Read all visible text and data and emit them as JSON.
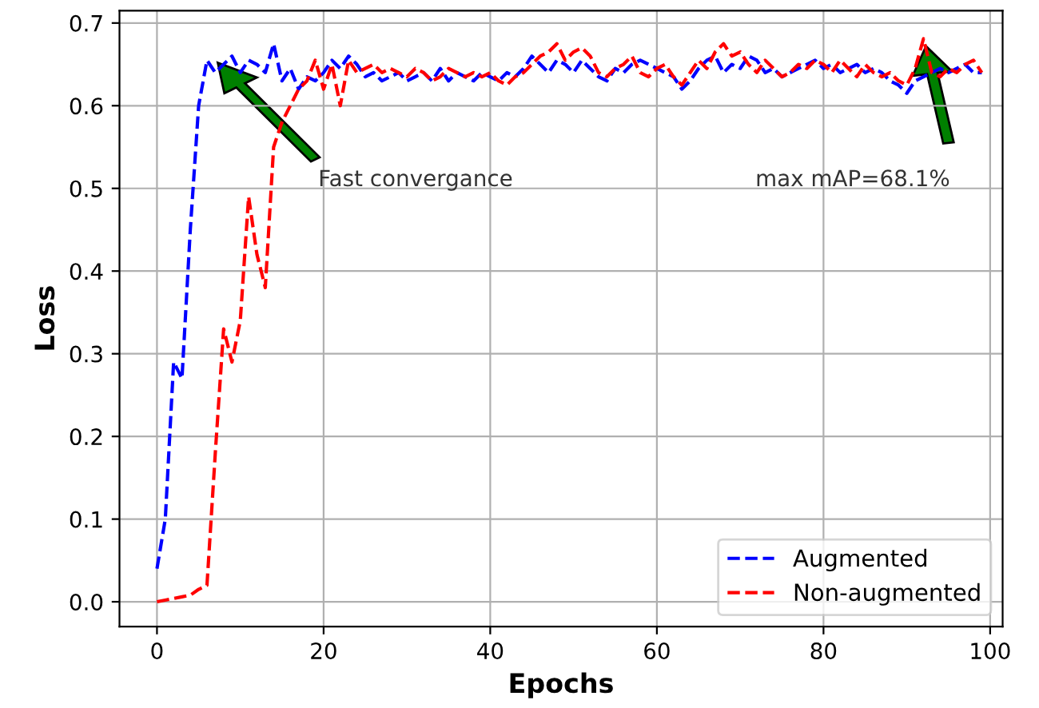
{
  "chart_data": {
    "type": "line",
    "xlabel": "Epochs",
    "ylabel": "Loss",
    "x": [
      0,
      1,
      2,
      3,
      4,
      5,
      6,
      7,
      8,
      9,
      10,
      11,
      12,
      13,
      14,
      15,
      16,
      17,
      18,
      19,
      20,
      21,
      22,
      23,
      24,
      25,
      26,
      27,
      28,
      29,
      30,
      31,
      32,
      33,
      34,
      35,
      36,
      37,
      38,
      39,
      40,
      41,
      42,
      43,
      44,
      45,
      46,
      47,
      48,
      49,
      50,
      51,
      52,
      53,
      54,
      55,
      56,
      57,
      58,
      59,
      60,
      61,
      62,
      63,
      64,
      65,
      66,
      67,
      68,
      69,
      70,
      71,
      72,
      73,
      74,
      75,
      76,
      77,
      78,
      79,
      80,
      81,
      82,
      83,
      84,
      85,
      86,
      87,
      88,
      89,
      90,
      91,
      92,
      93,
      94,
      95,
      96,
      97,
      98,
      99
    ],
    "series": [
      {
        "name": "Augmented",
        "color": "#0000ff",
        "values": [
          0.04,
          0.1,
          0.29,
          0.27,
          0.45,
          0.6,
          0.655,
          0.64,
          0.65,
          0.66,
          0.64,
          0.655,
          0.65,
          0.64,
          0.675,
          0.63,
          0.645,
          0.62,
          0.635,
          0.63,
          0.64,
          0.655,
          0.645,
          0.66,
          0.65,
          0.635,
          0.64,
          0.63,
          0.635,
          0.64,
          0.63,
          0.635,
          0.64,
          0.63,
          0.645,
          0.63,
          0.64,
          0.635,
          0.63,
          0.64,
          0.635,
          0.63,
          0.64,
          0.635,
          0.645,
          0.66,
          0.65,
          0.64,
          0.655,
          0.65,
          0.64,
          0.655,
          0.645,
          0.635,
          0.63,
          0.645,
          0.64,
          0.65,
          0.655,
          0.65,
          0.645,
          0.64,
          0.635,
          0.62,
          0.63,
          0.645,
          0.655,
          0.66,
          0.64,
          0.65,
          0.645,
          0.66,
          0.655,
          0.64,
          0.645,
          0.635,
          0.64,
          0.645,
          0.65,
          0.655,
          0.645,
          0.65,
          0.64,
          0.645,
          0.65,
          0.64,
          0.645,
          0.64,
          0.63,
          0.625,
          0.615,
          0.63,
          0.635,
          0.64,
          0.645,
          0.64,
          0.645,
          0.65,
          0.64,
          0.64
        ]
      },
      {
        "name": "Non-augmented",
        "color": "#ff0000",
        "values": [
          0,
          0.002,
          0.004,
          0.006,
          0.008,
          0.015,
          0.02,
          0.18,
          0.33,
          0.29,
          0.34,
          0.49,
          0.42,
          0.38,
          0.55,
          0.58,
          0.6,
          0.62,
          0.63,
          0.655,
          0.62,
          0.65,
          0.6,
          0.655,
          0.64,
          0.645,
          0.65,
          0.64,
          0.645,
          0.64,
          0.635,
          0.645,
          0.64,
          0.63,
          0.635,
          0.645,
          0.64,
          0.635,
          0.64,
          0.635,
          0.64,
          0.63,
          0.625,
          0.635,
          0.64,
          0.65,
          0.66,
          0.665,
          0.675,
          0.655,
          0.665,
          0.67,
          0.66,
          0.64,
          0.635,
          0.645,
          0.65,
          0.66,
          0.64,
          0.635,
          0.645,
          0.65,
          0.635,
          0.625,
          0.64,
          0.655,
          0.645,
          0.665,
          0.675,
          0.66,
          0.665,
          0.65,
          0.64,
          0.655,
          0.645,
          0.635,
          0.64,
          0.65,
          0.645,
          0.655,
          0.65,
          0.64,
          0.655,
          0.645,
          0.635,
          0.65,
          0.64,
          0.635,
          0.64,
          0.63,
          0.625,
          0.645,
          0.681,
          0.64,
          0.635,
          0.645,
          0.64,
          0.65,
          0.655,
          0.64
        ]
      }
    ],
    "line_style": "dashed",
    "marker": "none",
    "xlim": [
      -4.5,
      101.5
    ],
    "xticks": [
      0,
      20,
      40,
      60,
      80,
      100
    ],
    "ylim": [
      -0.03,
      0.715
    ],
    "yticks": [
      {
        "value": 0,
        "label": "0.0"
      },
      0.1,
      0.2,
      0.3,
      0.4,
      0.5,
      0.6,
      0.7
    ],
    "grid": true,
    "legend": "bottom right",
    "annotations": [
      "Fast convergance",
      "max mAP=68.1%"
    ]
  }
}
